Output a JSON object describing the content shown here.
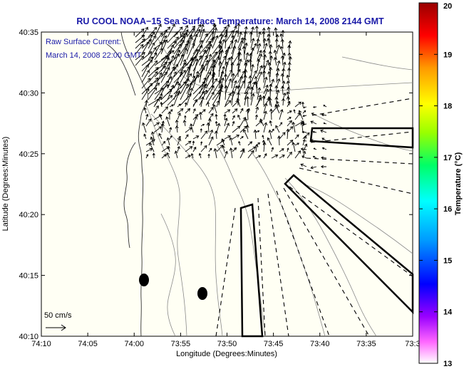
{
  "title": "RU COOL  NOAA−15  Sea Surface Temperature:  March 14, 2008 2144 GMT",
  "annotation": {
    "line1": "Raw Surface Current:",
    "line2": "March 14, 2008 22:00 GMT"
  },
  "scale_label": "50 cm/s",
  "axes": {
    "xlabel": "Longitude (Degrees:Minutes)",
    "ylabel": "Latitude (Degrees:Minutes)",
    "xticks": [
      "74:10",
      "74:05",
      "74:00",
      "73:55",
      "73:50",
      "73:45",
      "73:40",
      "73:35",
      "73:3"
    ],
    "yticks": [
      "40:35",
      "40:30",
      "40:25",
      "40:20",
      "40:15",
      "40:10"
    ]
  },
  "colorbar": {
    "label": "Temperature (°C)",
    "ticks": [
      "20",
      "19",
      "18",
      "17",
      "16",
      "15",
      "14",
      "13"
    ],
    "min": 13,
    "max": 20
  },
  "colors": {
    "title": "#1a1aa8",
    "land": "#fffff4",
    "arrows": "#000000"
  }
}
